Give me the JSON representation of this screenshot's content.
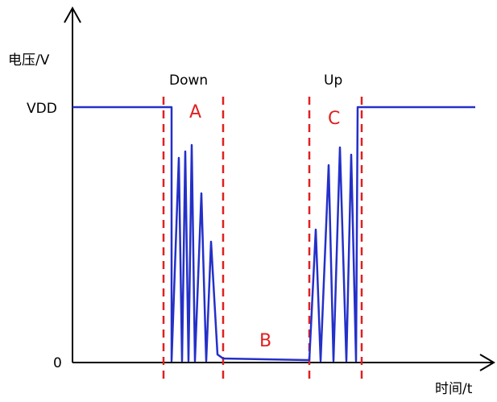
{
  "axes": {
    "y_label": "电压/V",
    "x_label": "时间/t",
    "y_high": "VDD",
    "y_low": "0"
  },
  "annotations": {
    "down": "Down",
    "up": "Up",
    "region_a": "A",
    "region_b": "B",
    "region_c": "C"
  }
}
